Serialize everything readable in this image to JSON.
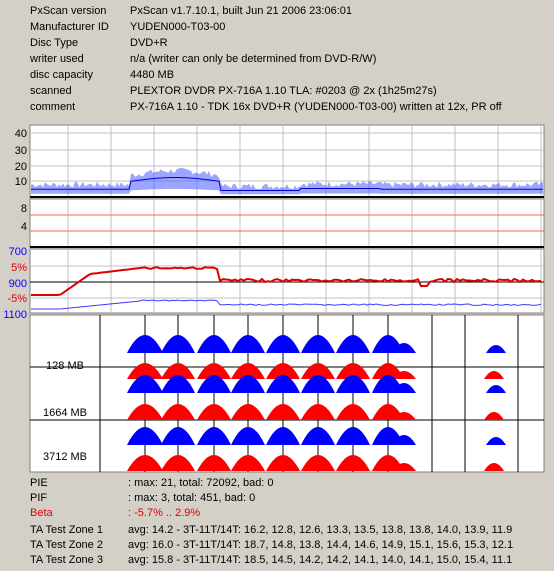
{
  "info": [
    {
      "label": "PxScan version",
      "value": "PxScan v1.7.10.1, built Jun 21 2006 23:06:01"
    },
    {
      "label": "Manufacturer ID",
      "value": "YUDEN000-T03-00"
    },
    {
      "label": "Disc Type",
      "value": "DVD+R"
    },
    {
      "label": "writer used",
      "value": "n/a (writer can only be determined from DVD-R/W)"
    },
    {
      "label": "disc capacity",
      "value": "4480 MB"
    },
    {
      "label": "scanned",
      "value": "PLEXTOR DVDR PX-716A 1.10 TLA: #0203 @ 2x (1h25m27s)"
    },
    {
      "label": "comment",
      "value": "PX-716A 1.10 - TDK 16x DVD+R (YUDEN000-T03-00) written at 12x, PR off"
    }
  ],
  "pie_axis": [
    "40",
    "30",
    "20",
    "10"
  ],
  "pif_axis": [
    "8",
    "4"
  ],
  "jitter_axis": {
    "left_blue_top": "700",
    "left_red_top": "5%",
    "left_blue_mid": "900",
    "left_red_bot": "-5%",
    "left_blue_bot": "1100"
  },
  "ta_zones": [
    "128 MB",
    "1664 MB",
    "3712 MB"
  ],
  "stats": [
    {
      "label": "PIE",
      "value": ": max: 21, total: 72092, bad: 0",
      "red": false
    },
    {
      "label": "PIF",
      "value": ": max: 3, total: 451, bad: 0",
      "red": false
    },
    {
      "label": "Beta",
      "value": ": -5.7% .. 2.9%",
      "red": true
    },
    {
      "label": "TA Test Zone 1",
      "value": "avg: 14.2 - 3T-11T/14T: 16.2, 12.8, 12.6, 13.3, 13.5, 13.8, 13.8, 14.0, 13.9, 11.9",
      "red": false
    },
    {
      "label": "TA Test Zone 2",
      "value": "avg: 16.0 - 3T-11T/14T: 18.7, 14.8, 13.8, 14.4, 14.6, 14.9, 15.1, 15.6, 15.3, 12.1",
      "red": false
    },
    {
      "label": "TA Test Zone 3",
      "value": "avg: 15.8 - 3T-11T/14T: 18.5, 14.5, 14.2, 14.2, 14.1, 14.0, 14.1, 15.0, 15.4, 11.1",
      "red": false
    }
  ],
  "colors": {
    "blue": "#0000ff",
    "red": "#ff0000",
    "panel": "#d4d0c8"
  }
}
